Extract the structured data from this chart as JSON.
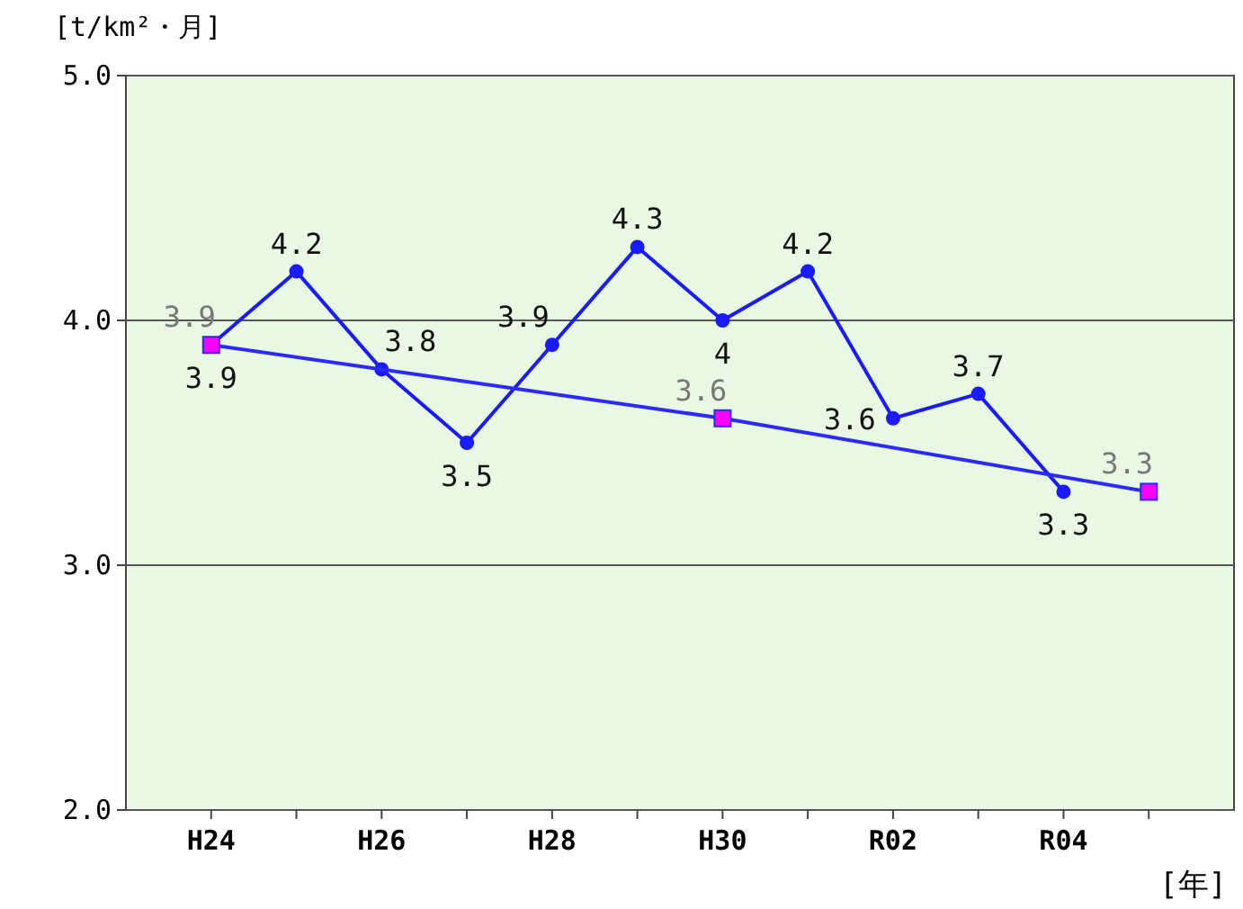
{
  "chart_data": {
    "type": "line",
    "ylabel": "[t/km²・月]",
    "xlabel": "[年]",
    "categories": [
      "H24",
      null,
      "H26",
      null,
      "H28",
      null,
      "H30",
      null,
      "R02",
      null,
      "R04",
      null
    ],
    "series": [
      {
        "color": "#1a1aff",
        "marker": "circle",
        "values": [
          3.9,
          4.2,
          3.8,
          3.5,
          3.9,
          4.3,
          4,
          4.2,
          3.6,
          3.7,
          3.3,
          null
        ]
      },
      {
        "color": "#2a2aff",
        "marker": "square",
        "values": [
          3.9,
          null,
          null,
          null,
          null,
          null,
          3.6,
          null,
          null,
          null,
          null,
          3.3
        ]
      }
    ],
    "ylim": [
      2,
      5
    ],
    "yticks": [
      {
        "value": 2,
        "label": "2.0"
      },
      {
        "value": 3,
        "label": "3.0"
      },
      {
        "value": 4,
        "label": "4.0"
      },
      {
        "value": 5,
        "label": "5.0"
      }
    ],
    "grid": "y",
    "data_labels": true
  }
}
